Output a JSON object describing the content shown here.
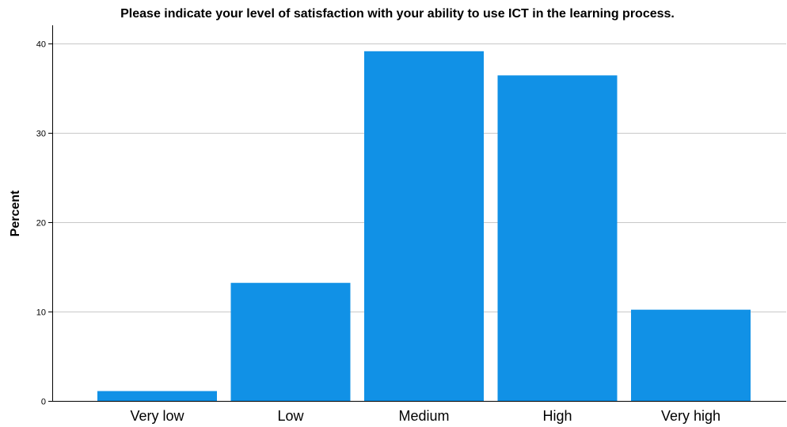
{
  "chart_data": {
    "type": "bar",
    "title": "Please indicate your level of satisfaction with your ability to use ICT in the learning process.",
    "xlabel": "",
    "ylabel": "Percent",
    "categories": [
      "Very low",
      "Low",
      "Medium",
      "High",
      "Very high"
    ],
    "values": [
      1.1,
      13.2,
      39.1,
      36.4,
      10.2
    ],
    "ylim": [
      0,
      42
    ],
    "yticks": [
      0,
      10,
      20,
      30,
      40
    ],
    "grid": true,
    "legend": "none",
    "colors": {
      "bar": "#1191e6",
      "grid": "#c8c8c8",
      "axis": "#000000",
      "background": "#ffffff"
    }
  }
}
